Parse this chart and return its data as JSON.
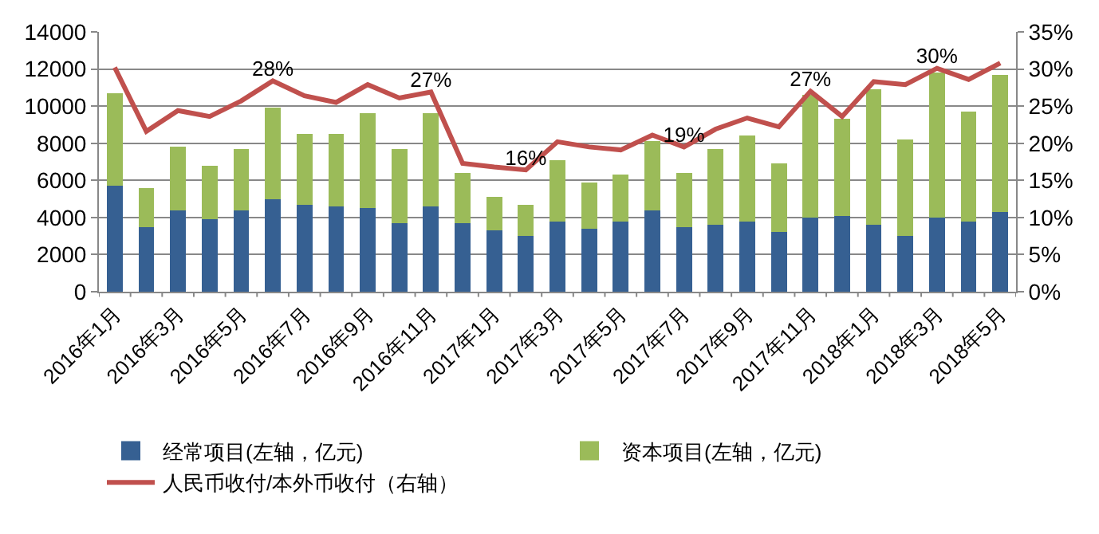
{
  "chart_data": {
    "type": "bar",
    "stacked": true,
    "categories": [
      "2016年1月",
      null,
      "2016年3月",
      null,
      "2016年5月",
      null,
      "2016年7月",
      null,
      "2016年9月",
      null,
      "2016年11月",
      null,
      "2017年1月",
      null,
      "2017年3月",
      null,
      "2017年5月",
      null,
      "2017年7月",
      null,
      "2017年9月",
      null,
      "2017年11月",
      null,
      "2018年1月",
      null,
      "2018年3月",
      null,
      "2018年5月"
    ],
    "series": [
      {
        "name": "经常项目(左轴，亿元)",
        "color": "#366092",
        "values": [
          5700,
          3500,
          4400,
          3900,
          4400,
          5000,
          4700,
          4600,
          4500,
          3700,
          4600,
          3700,
          3300,
          3000,
          3800,
          3400,
          3800,
          4400,
          3500,
          3600,
          3800,
          3200,
          4000,
          4100,
          3600,
          3000,
          4000,
          3800,
          4300
        ]
      },
      {
        "name": "资本项目(左轴，亿元)",
        "color": "#9bbb59",
        "values": [
          5000,
          2100,
          3400,
          2900,
          3300,
          4900,
          3800,
          3900,
          5100,
          4000,
          5000,
          2700,
          1800,
          1700,
          3300,
          2500,
          2500,
          3700,
          2900,
          4100,
          4600,
          3700,
          6600,
          5200,
          7300,
          5200,
          7800,
          5900,
          7400
        ]
      },
      {
        "name": "人民币收付/本外币收付（右轴）",
        "type": "line",
        "axis": "y2",
        "color": "#c0504d",
        "values": [
          30.2,
          21.6,
          24.4,
          23.6,
          25.7,
          28.4,
          26.4,
          25.5,
          27.9,
          26.1,
          26.9,
          17.3,
          16.8,
          16.4,
          20.2,
          19.5,
          19.1,
          21.1,
          19.5,
          21.9,
          23.4,
          22.2,
          27.0,
          23.6,
          28.3,
          27.9,
          30.1,
          28.6,
          30.8
        ],
        "value_labels": [
          null,
          null,
          null,
          null,
          null,
          "28%",
          null,
          null,
          null,
          null,
          "27%",
          null,
          null,
          "16%",
          null,
          null,
          null,
          null,
          "19%",
          null,
          null,
          null,
          "27%",
          null,
          null,
          null,
          "30%",
          null,
          null
        ]
      }
    ],
    "ylim": [
      0,
      14000
    ],
    "yticks": [
      0,
      2000,
      4000,
      6000,
      8000,
      10000,
      12000,
      14000
    ],
    "y2lim": [
      0,
      35
    ],
    "y2ticks": [
      {
        "value": 0,
        "label": "0%"
      },
      {
        "value": 5,
        "label": "5%"
      },
      {
        "value": 10,
        "label": "10%"
      },
      {
        "value": 15,
        "label": "15%"
      },
      {
        "value": 20,
        "label": "20%"
      },
      {
        "value": 25,
        "label": "25%"
      },
      {
        "value": 30,
        "label": "30%"
      },
      {
        "value": 35,
        "label": "35%"
      }
    ],
    "grid": "y",
    "legend": "bottom",
    "marker": "none",
    "line_style": "solid"
  }
}
